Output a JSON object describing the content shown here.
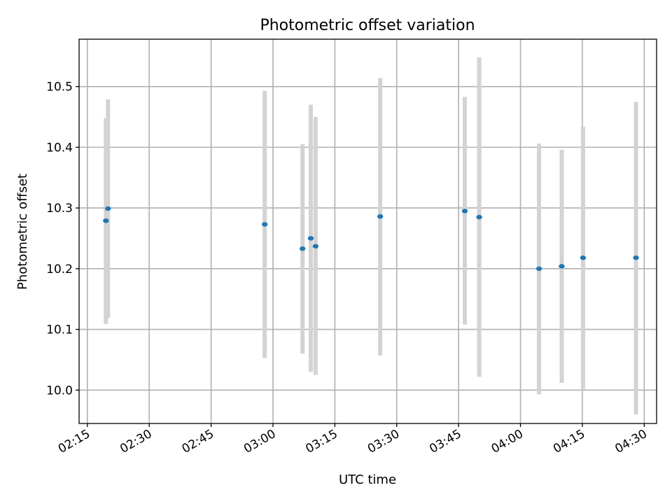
{
  "chart_data": {
    "type": "scatter",
    "title": "Photometric offset variation",
    "xlabel": "UTC time",
    "ylabel": "Photometric offset",
    "grid": true,
    "xlim": [
      "02:13",
      "04:33"
    ],
    "ylim": [
      9.945,
      10.578
    ],
    "x_ticks": [
      "02:15",
      "02:30",
      "02:45",
      "03:00",
      "03:15",
      "03:30",
      "03:45",
      "04:00",
      "04:15",
      "04:30"
    ],
    "y_ticks": [
      10.0,
      10.1,
      10.2,
      10.3,
      10.4,
      10.5
    ],
    "y_tick_labels": [
      "10.0",
      "10.1",
      "10.2",
      "10.3",
      "10.4",
      "10.5"
    ],
    "marker_color": "#1f77b4",
    "errorbar_color": "#d3d3d3",
    "points": [
      {
        "t": "02:19:30",
        "y": 10.279,
        "low": 10.109,
        "high": 10.448
      },
      {
        "t": "02:20:00",
        "y": 10.299,
        "low": 10.119,
        "high": 10.479
      },
      {
        "t": "02:58:00",
        "y": 10.273,
        "low": 10.053,
        "high": 10.493
      },
      {
        "t": "03:07:10",
        "y": 10.233,
        "low": 10.06,
        "high": 10.405
      },
      {
        "t": "03:09:10",
        "y": 10.25,
        "low": 10.03,
        "high": 10.47
      },
      {
        "t": "03:10:20",
        "y": 10.237,
        "low": 10.025,
        "high": 10.45
      },
      {
        "t": "03:26:00",
        "y": 10.286,
        "low": 10.057,
        "high": 10.514
      },
      {
        "t": "03:46:30",
        "y": 10.295,
        "low": 10.108,
        "high": 10.483
      },
      {
        "t": "03:50:00",
        "y": 10.285,
        "low": 10.022,
        "high": 10.548
      },
      {
        "t": "04:04:30",
        "y": 10.2,
        "low": 9.993,
        "high": 10.406
      },
      {
        "t": "04:10:00",
        "y": 10.204,
        "low": 10.012,
        "high": 10.396
      },
      {
        "t": "04:15:10",
        "y": 10.218,
        "low": 10.0,
        "high": 10.434
      },
      {
        "t": "04:28:00",
        "y": 10.218,
        "low": 9.96,
        "high": 10.475
      }
    ]
  }
}
